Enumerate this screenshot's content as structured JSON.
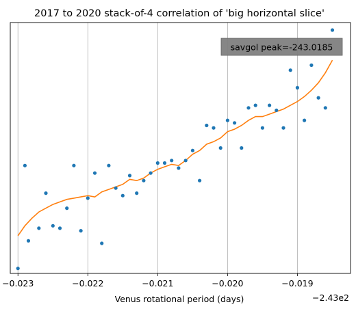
{
  "chart_data": {
    "type": "scatter",
    "title": "2017 to 2020 stack-of-4 correlation of 'big horizontal slice'",
    "xlabel": "Venus rotational period (days)",
    "ylabel": "",
    "offset_label": "−2.43e2",
    "x_tick_labels": [
      "−0.023",
      "−0.022",
      "−0.021",
      "−0.020",
      "−0.019"
    ],
    "x_ticks": [
      -0.023,
      -0.022,
      -0.021,
      -0.02,
      -0.019
    ],
    "xlim": [
      -0.02311,
      -0.01824
    ],
    "ylim": [
      0,
      1
    ],
    "grid": "x",
    "annotation": "savgol peak=-243.0185",
    "annotation_box_color": "#808080",
    "series": [
      {
        "kind": "points",
        "color": "#1f77b4",
        "x": [
          -0.023,
          -0.0229,
          -0.02285,
          -0.0227,
          -0.0226,
          -0.0225,
          -0.0224,
          -0.0223,
          -0.0222,
          -0.0221,
          -0.022,
          -0.0219,
          -0.0218,
          -0.0217,
          -0.0216,
          -0.0215,
          -0.0214,
          -0.0213,
          -0.0212,
          -0.0211,
          -0.021,
          -0.0209,
          -0.0208,
          -0.0207,
          -0.0206,
          -0.0205,
          -0.0204,
          -0.0203,
          -0.0202,
          -0.0201,
          -0.02,
          -0.0199,
          -0.0198,
          -0.0197,
          -0.0196,
          -0.0195,
          -0.0194,
          -0.0193,
          -0.0192,
          -0.0191,
          -0.019,
          -0.0189,
          -0.0188,
          -0.0187,
          -0.0186,
          -0.0185
        ],
        "y": [
          0.02,
          0.43,
          0.13,
          0.18,
          0.32,
          0.19,
          0.18,
          0.26,
          0.43,
          0.17,
          0.3,
          0.4,
          0.12,
          0.43,
          0.34,
          0.31,
          0.39,
          0.32,
          0.37,
          0.4,
          0.44,
          0.44,
          0.45,
          0.42,
          0.45,
          0.49,
          0.37,
          0.59,
          0.58,
          0.5,
          0.61,
          0.6,
          0.5,
          0.66,
          0.67,
          0.58,
          0.67,
          0.65,
          0.58,
          0.81,
          0.74,
          0.61,
          0.83,
          0.7,
          0.66,
          0.97
        ]
      },
      {
        "kind": "line",
        "color": "#ff7f0e",
        "x": [
          -0.023,
          -0.0229,
          -0.0228,
          -0.0227,
          -0.0226,
          -0.0225,
          -0.0224,
          -0.0223,
          -0.0222,
          -0.0221,
          -0.022,
          -0.0219,
          -0.0218,
          -0.0217,
          -0.0216,
          -0.0215,
          -0.0214,
          -0.0213,
          -0.0212,
          -0.0211,
          -0.021,
          -0.0209,
          -0.0208,
          -0.0207,
          -0.0206,
          -0.0205,
          -0.0204,
          -0.0203,
          -0.0202,
          -0.0201,
          -0.02,
          -0.0199,
          -0.0198,
          -0.0197,
          -0.0196,
          -0.0195,
          -0.0194,
          -0.0193,
          -0.0192,
          -0.0191,
          -0.019,
          -0.0189,
          -0.0188,
          -0.0187,
          -0.0186,
          -0.0185
        ],
        "y": [
          0.15,
          0.19,
          0.22,
          0.245,
          0.26,
          0.275,
          0.285,
          0.295,
          0.3,
          0.305,
          0.31,
          0.305,
          0.325,
          0.335,
          0.345,
          0.355,
          0.375,
          0.37,
          0.38,
          0.4,
          0.415,
          0.425,
          0.435,
          0.43,
          0.45,
          0.475,
          0.49,
          0.515,
          0.525,
          0.54,
          0.565,
          0.575,
          0.59,
          0.61,
          0.625,
          0.625,
          0.635,
          0.645,
          0.655,
          0.67,
          0.685,
          0.705,
          0.73,
          0.76,
          0.8,
          0.85
        ]
      }
    ]
  }
}
